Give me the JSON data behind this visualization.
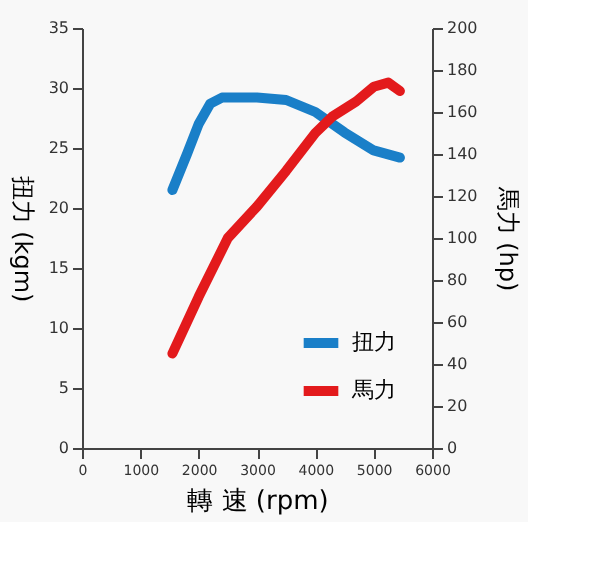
{
  "chart_data": {
    "type": "line",
    "xlabel": "轉 速 (rpm)",
    "ylabel": "扭力 (kgm)",
    "y2label": "馬力 (hp)",
    "xlim": [
      0,
      6000
    ],
    "xticks": [
      0,
      1000,
      2000,
      3000,
      4000,
      5000,
      6000
    ],
    "ylim": [
      0,
      35
    ],
    "yticks": [
      0,
      5,
      10,
      15,
      20,
      25,
      30,
      35
    ],
    "y2lim": [
      0,
      200
    ],
    "y2ticks": [
      0,
      20,
      40,
      60,
      80,
      100,
      120,
      140,
      160,
      180,
      200
    ],
    "grid": false,
    "legend": "bottom right",
    "marker": "none",
    "line_style": "solid",
    "series": [
      {
        "name": "扭力",
        "color": "#1a7fc8",
        "axis": "y",
        "x": [
          1550,
          1800,
          2000,
          2200,
          2400,
          3000,
          3500,
          4000,
          4500,
          5000,
          5450
        ],
        "values": [
          21.5,
          24.5,
          27,
          28.7,
          29.2,
          29.2,
          29,
          28,
          26.3,
          24.8,
          24.2
        ]
      },
      {
        "name": "馬力",
        "color": "#e31a1c",
        "axis": "y2",
        "x": [
          1550,
          2000,
          2500,
          3000,
          3500,
          4000,
          4300,
          4700,
          5000,
          5250,
          5450
        ],
        "values": [
          45,
          72,
          100,
          115,
          132,
          150,
          158,
          165,
          172,
          174,
          170
        ]
      }
    ]
  }
}
